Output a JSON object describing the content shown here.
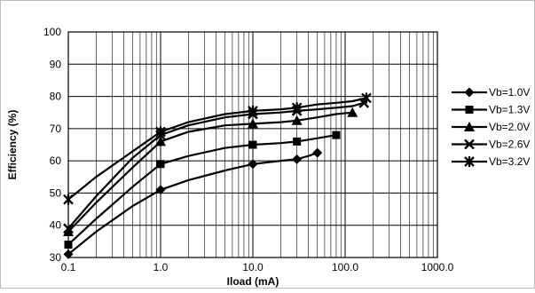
{
  "chart_data": {
    "type": "line",
    "title": "",
    "xlabel": "Iload (mA)",
    "ylabel": "Efficiency (%)",
    "x_scale": "log",
    "xlim": [
      0.1,
      1000.0
    ],
    "ylim": [
      30,
      100
    ],
    "x_ticks": [
      "0.1",
      "1.0",
      "10.0",
      "100.0",
      "1000.0"
    ],
    "y_ticks": [
      "30",
      "40",
      "50",
      "60",
      "70",
      "80",
      "90",
      "100"
    ],
    "grid": true,
    "legend_position": "right",
    "series": [
      {
        "name": "Vb=1.0V",
        "marker": "diamond",
        "x": [
          0.1,
          0.2,
          0.5,
          1.0,
          2.0,
          5.0,
          10.0,
          20.0,
          30.0,
          40.0,
          50.0
        ],
        "y": [
          31,
          38,
          46,
          51,
          54,
          57,
          59,
          60,
          60.5,
          61.5,
          62.5
        ]
      },
      {
        "name": "Vb=1.3V",
        "marker": "square",
        "x": [
          0.1,
          0.2,
          0.5,
          1.0,
          2.0,
          5.0,
          10.0,
          20.0,
          30.0,
          50.0,
          80.0
        ],
        "y": [
          34,
          42,
          52,
          59,
          61.5,
          64,
          65,
          65.5,
          66,
          67,
          68
        ]
      },
      {
        "name": "Vb=2.0V",
        "marker": "triangle",
        "x": [
          0.1,
          0.2,
          0.5,
          1.0,
          2.0,
          5.0,
          10.0,
          20.0,
          30.0,
          50.0,
          80.0,
          120.0
        ],
        "y": [
          38,
          47,
          58,
          66,
          69,
          71,
          71.5,
          72,
          72.5,
          73.5,
          74.5,
          75
        ]
      },
      {
        "name": "Vb=2.6V",
        "marker": "x",
        "x": [
          0.1,
          0.2,
          0.5,
          1.0,
          2.0,
          5.0,
          10.0,
          20.0,
          30.0,
          50.0,
          80.0,
          120.0,
          160.0
        ],
        "y": [
          39,
          49,
          61,
          68,
          71,
          73.5,
          74.5,
          75,
          75.5,
          76,
          76.5,
          77,
          78
        ]
      },
      {
        "name": "Vb=3.2V",
        "marker": "star",
        "x": [
          0.1,
          0.2,
          0.5,
          1.0,
          2.0,
          5.0,
          10.0,
          20.0,
          30.0,
          50.0,
          80.0,
          120.0,
          170.0
        ],
        "y": [
          48,
          55,
          63,
          69,
          72,
          74.5,
          75.5,
          76,
          76.5,
          77.5,
          78,
          78.5,
          79.5
        ]
      }
    ]
  }
}
